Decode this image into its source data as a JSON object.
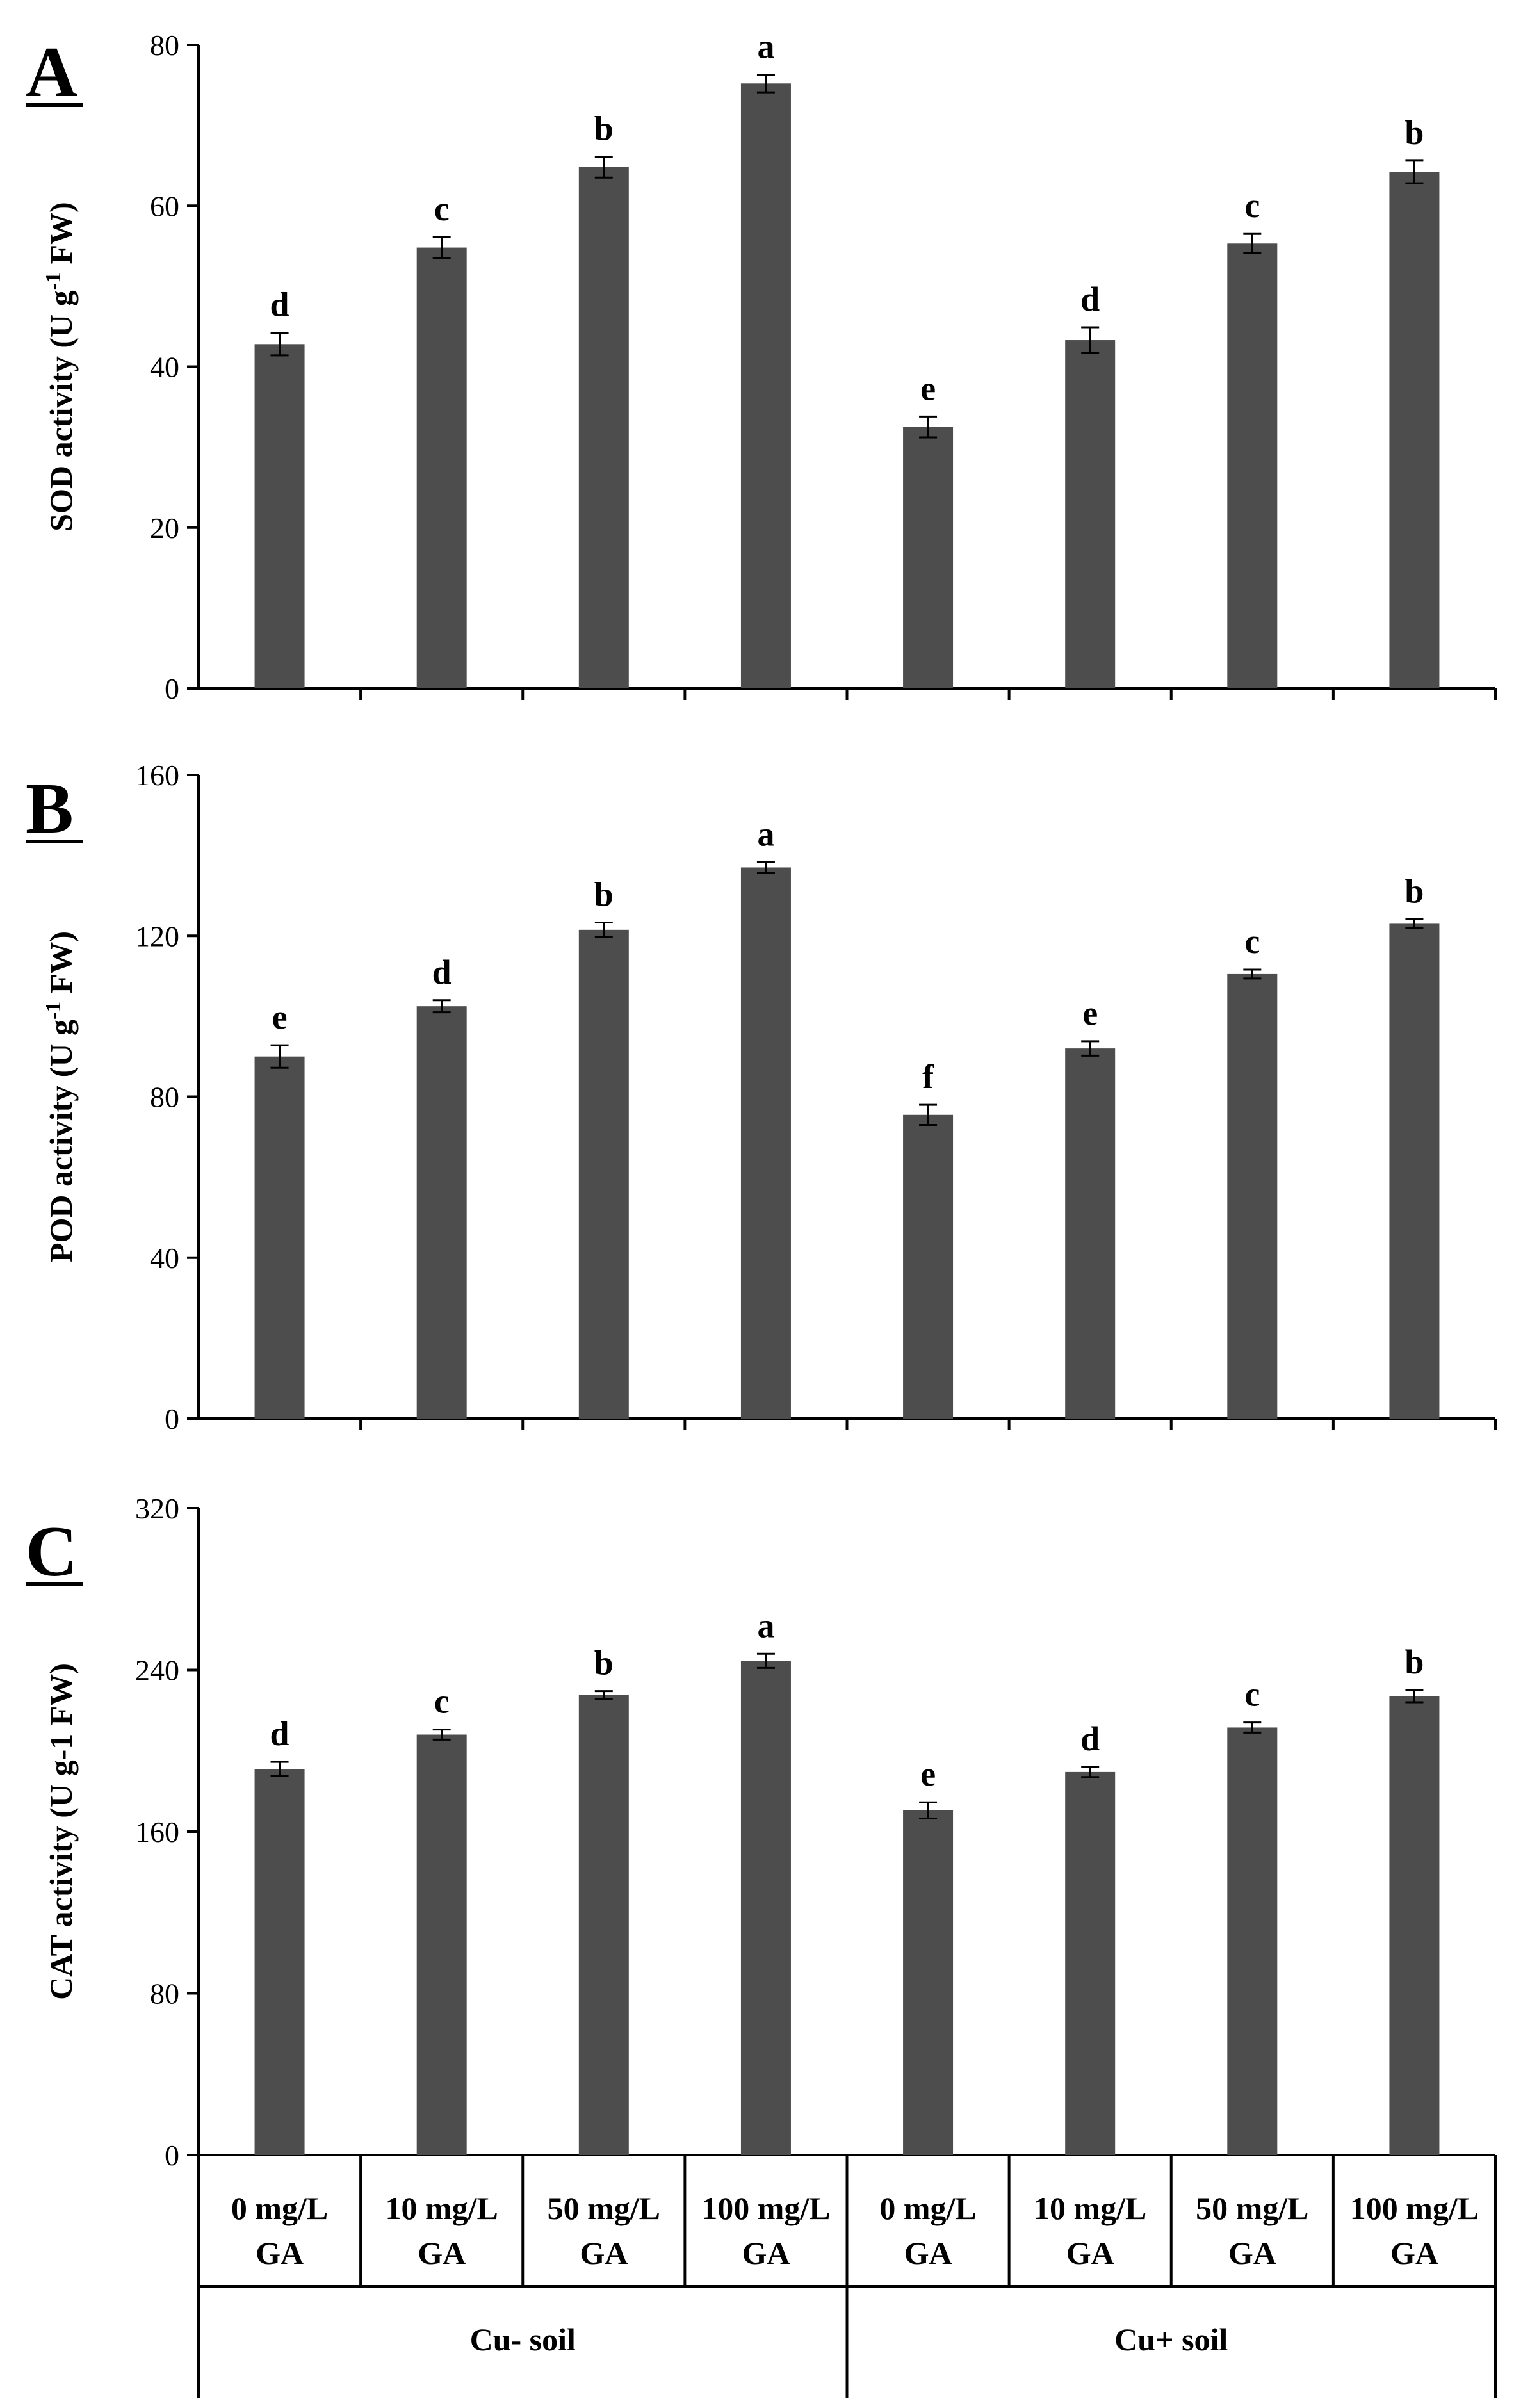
{
  "chart_data": [
    {
      "type": "bar",
      "panel": "A",
      "ylabel": "SOD activity (U g-1 FW)",
      "ylabel_parts": [
        "SOD activity (U g",
        "-1",
        " FW)"
      ],
      "ylim": [
        0,
        80
      ],
      "yticks": [
        0,
        20,
        40,
        60,
        80
      ],
      "categories": [
        "0 mg/L GA",
        "10 mg/L GA",
        "50 mg/L GA",
        "100 mg/L GA",
        "0 mg/L GA",
        "10 mg/L GA",
        "50 mg/L GA",
        "100 mg/L GA"
      ],
      "values": [
        42.8,
        54.8,
        64.8,
        75.2,
        32.5,
        43.3,
        55.3,
        64.2
      ],
      "errors": [
        1.4,
        1.3,
        1.3,
        1.1,
        1.3,
        1.6,
        1.2,
        1.4
      ],
      "letters": [
        "d",
        "c",
        "b",
        "a",
        "e",
        "d",
        "c",
        "b"
      ],
      "color": "#4d4d4d"
    },
    {
      "type": "bar",
      "panel": "B",
      "ylabel": "POD activity (U g-1 FW)",
      "ylabel_parts": [
        "POD activity (U g",
        "-1",
        " FW)"
      ],
      "ylim": [
        0,
        160
      ],
      "yticks": [
        0,
        40,
        80,
        120,
        160
      ],
      "categories": [
        "0 mg/L GA",
        "10 mg/L GA",
        "50 mg/L GA",
        "100 mg/L GA",
        "0 mg/L GA",
        "10 mg/L GA",
        "50 mg/L GA",
        "100 mg/L GA"
      ],
      "values": [
        90,
        102.5,
        121.5,
        137,
        75.5,
        92,
        110.5,
        123
      ],
      "errors": [
        2.8,
        1.5,
        1.8,
        1.3,
        2.5,
        1.8,
        1.1,
        1.1
      ],
      "letters": [
        "e",
        "d",
        "b",
        "a",
        "f",
        "e",
        "c",
        "b"
      ],
      "color": "#4d4d4d"
    },
    {
      "type": "bar",
      "panel": "C",
      "ylabel": "CAT activity (U g-1 FW)",
      "ylabel_parts": [
        "CAT activity (U g-1 FW)",
        "",
        ""
      ],
      "ylim": [
        0,
        320
      ],
      "yticks": [
        0,
        80,
        160,
        240,
        320
      ],
      "categories": [
        "0 mg/L GA",
        "10 mg/L GA",
        "50 mg/L GA",
        "100 mg/L GA",
        "0 mg/L GA",
        "10 mg/L GA",
        "50 mg/L GA",
        "100 mg/L GA"
      ],
      "values": [
        191,
        208,
        227.5,
        244.5,
        170.5,
        189.5,
        211.5,
        227
      ],
      "errors": [
        3.5,
        2.5,
        2,
        3.5,
        4,
        2.5,
        2.5,
        3
      ],
      "letters": [
        "d",
        "c",
        "b",
        "a",
        "e",
        "d",
        "c",
        "b"
      ],
      "color": "#4d4d4d"
    }
  ],
  "x_categories": [
    {
      "line1": "0 mg/L",
      "line2": "GA"
    },
    {
      "line1": "10 mg/L",
      "line2": "GA"
    },
    {
      "line1": "50 mg/L",
      "line2": "GA"
    },
    {
      "line1": "100 mg/L",
      "line2": "GA"
    },
    {
      "line1": "0 mg/L",
      "line2": "GA"
    },
    {
      "line1": "10 mg/L",
      "line2": "GA"
    },
    {
      "line1": "50 mg/L",
      "line2": "GA"
    },
    {
      "line1": "100 mg/L",
      "line2": "GA"
    }
  ],
  "groups": [
    "Cu- soil",
    "Cu+ soil"
  ]
}
